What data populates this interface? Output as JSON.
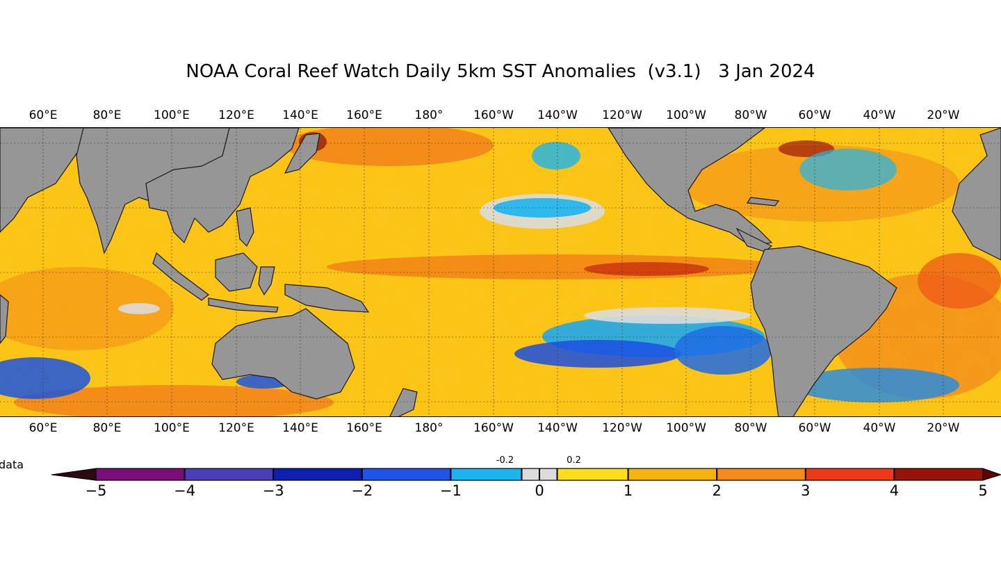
{
  "title": "NOAA Coral Reef Watch Daily 5km SST Anomalies  (v3.1)   3 Jan 2024",
  "longitude_labels": [
    "60°E",
    "80°E",
    "100°E",
    "120°E",
    "140°E",
    "160°E",
    "180°",
    "160°W",
    "140°W",
    "120°W",
    "100°W",
    "80°W",
    "60°W",
    "40°W",
    "20°W"
  ],
  "legend": {
    "no_data_label": "data",
    "ticks": [
      "−5",
      "−4",
      "−3",
      "−2",
      "−1",
      "0",
      "1",
      "2",
      "3",
      "4",
      "5"
    ],
    "small_ticks": [
      "-0.2",
      "0.2"
    ],
    "color_bands": [
      {
        "range": "-5 to -4",
        "color": "#7a0e7a"
      },
      {
        "range": "-4 to -3",
        "color": "#4a3fb8"
      },
      {
        "range": "-3 to -2",
        "color": "#0c1fb0"
      },
      {
        "range": "-2 to -1",
        "color": "#1f55e6"
      },
      {
        "range": "-1 to -0.2",
        "color": "#1cb4ee"
      },
      {
        "range": "-0.2 to 0.2",
        "color": "#dcdcdc"
      },
      {
        "range": "0.2 to 1",
        "color": "#ffdd1a"
      },
      {
        "range": "1 to 2",
        "color": "#f6b20d"
      },
      {
        "range": "2 to 3",
        "color": "#f68a1c"
      },
      {
        "range": "3 to 4",
        "color": "#ee3a18"
      },
      {
        "range": "4 to 5",
        "color": "#961408"
      }
    ],
    "land_color": "#969696"
  }
}
